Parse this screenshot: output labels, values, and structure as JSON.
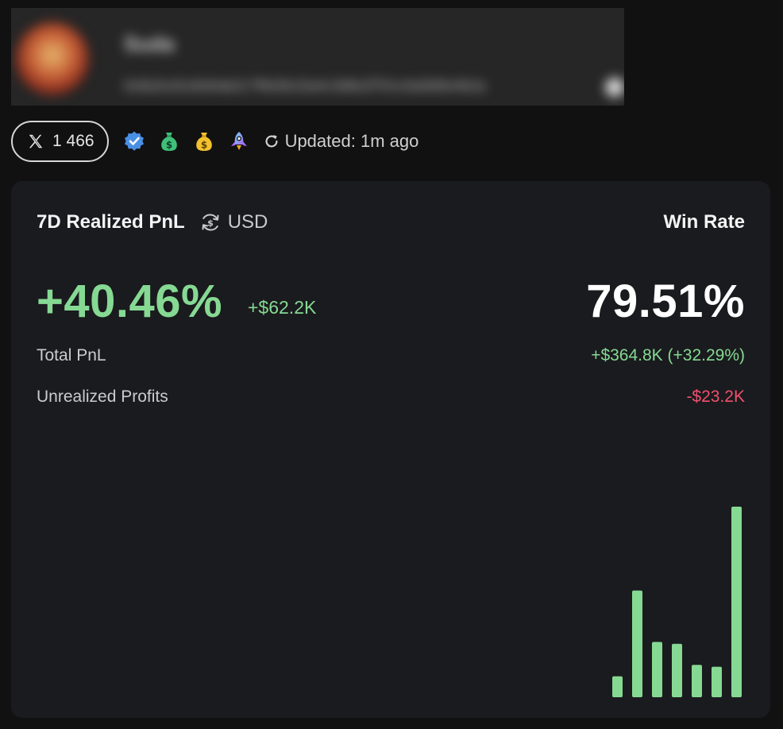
{
  "profile": {
    "name": "Suda",
    "subtitle": "0x8a3cd1e6d4ab2c7f9e5b10a4c3d8e2f7b1c6a9d0e4b2a"
  },
  "badges": {
    "x_followers": "1 466",
    "updated_text": "Updated: 1m ago",
    "icons": [
      "x-logo-icon",
      "verified-icon",
      "green-money-bag-icon",
      "gold-money-bag-icon",
      "rocket-icon",
      "refresh-icon"
    ]
  },
  "card": {
    "pnl_title": "7D Realized PnL",
    "currency": "USD",
    "winrate_title": "Win Rate",
    "pnl_percent": "+40.46%",
    "pnl_usd": "+$62.2K",
    "winrate_value": "79.51%",
    "total_pnl_label": "Total PnL",
    "total_pnl_value": "+$364.8K (+32.29%)",
    "unrealized_label": "Unrealized Profits",
    "unrealized_value": "-$23.2K"
  },
  "colors": {
    "positive": "#86d993",
    "negative": "#f0506e",
    "background": "#111111",
    "card": "#1a1b1e"
  },
  "chart_data": {
    "type": "bar",
    "title": "",
    "xlabel": "",
    "ylabel": "",
    "values": [
      11,
      56,
      29,
      28,
      17,
      16,
      100
    ],
    "ylim": [
      0,
      100
    ],
    "color": "#86d993",
    "grid": false
  }
}
